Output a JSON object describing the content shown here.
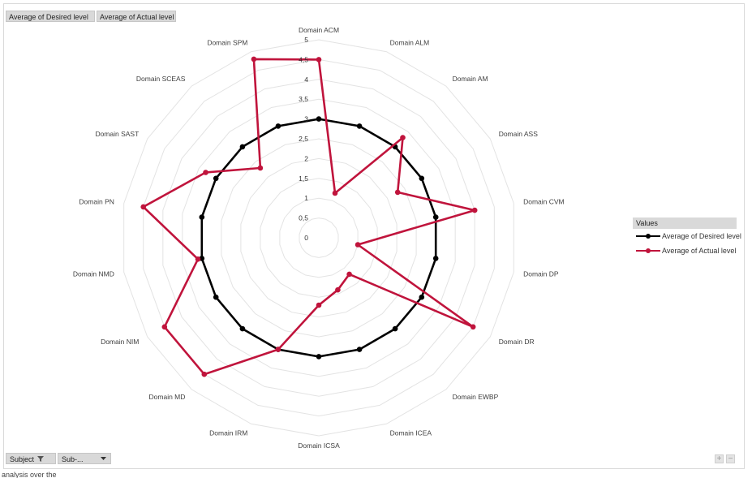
{
  "field_buttons": {
    "desired": "Average of Desired level",
    "actual": "Average of Actual level"
  },
  "legend": {
    "title": "Values",
    "items": [
      "Average of Desired level",
      "Average of Actual level"
    ]
  },
  "bottom_controls": {
    "subject_label": "Subject",
    "sub_label": "Sub-...",
    "filter_icon": "filter-icon",
    "dropdown_icon": "chevron-down-icon",
    "zoom_in": "+",
    "zoom_out": "−"
  },
  "footer": {
    "text": "analysis over the"
  },
  "colors": {
    "desired": "#000000",
    "actual": "#c0143c",
    "grid": "#e3e3e3",
    "label": "#404040"
  },
  "chart_data": {
    "type": "radar",
    "categories": [
      "Domain ACM",
      "Domain ALM",
      "Domain AM",
      "Domain ASS",
      "Domain CVM",
      "Domain DP",
      "Domain DR",
      "Domain EWBP",
      "Domain ICEA",
      "Domain ICSA",
      "Domain IRM",
      "Domain MD",
      "Domain NIM",
      "Domain NMD",
      "Domain PN",
      "Domain SAST",
      "Domain SCEAS",
      "Domain SPM"
    ],
    "series": [
      {
        "name": "Average of Desired level",
        "values": [
          3,
          3,
          3,
          3,
          3,
          3,
          3,
          3,
          3,
          3,
          3,
          3,
          3,
          3,
          3,
          3,
          3,
          3
        ]
      },
      {
        "name": "Average of Actual level",
        "values": [
          4.5,
          1.2,
          3.3,
          2.3,
          4,
          1,
          4.5,
          1.2,
          1.4,
          1.7,
          3,
          4.5,
          4.5,
          3.1,
          4.5,
          3.3,
          2.3,
          4.8
        ]
      }
    ],
    "rlim": [
      0,
      5
    ],
    "tick_labels": [
      "0",
      "0,5",
      "1",
      "1,5",
      "2",
      "2,5",
      "3",
      "3,5",
      "4",
      "4,5",
      "5"
    ],
    "grid": true,
    "legend_position": "right"
  }
}
